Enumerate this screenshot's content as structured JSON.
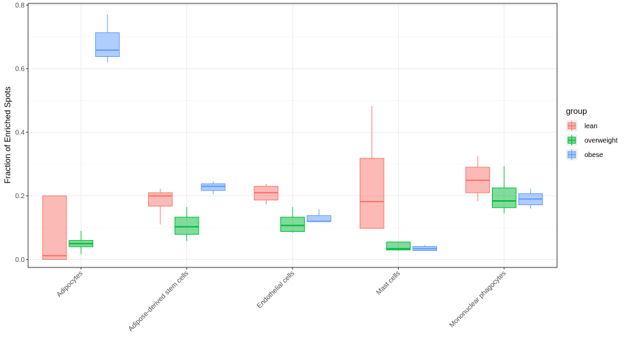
{
  "chart_data": {
    "type": "box",
    "title": "",
    "xlabel": "",
    "ylabel": "Fraction of Enriched Spots",
    "ylim": [
      -0.025,
      0.805
    ],
    "yticks": [
      "0.0",
      "0.2",
      "0.4",
      "0.6",
      "0.8"
    ],
    "ytick_values": [
      0.0,
      0.2,
      0.4,
      0.6,
      0.8
    ],
    "grid": true,
    "categories": [
      "Adipocytes",
      "Adipose-derived stem cells",
      "Endothelial cells",
      "Mast cells",
      "Mononuclear phagocytes"
    ],
    "legend": {
      "title": "group",
      "position": "right"
    },
    "series": [
      {
        "name": "lean",
        "color": "#F8766D",
        "boxes": [
          {
            "min": 0.0,
            "q1": 0.0,
            "median": 0.012,
            "q3": 0.2,
            "max": 0.2
          },
          {
            "min": 0.11,
            "q1": 0.168,
            "median": 0.2,
            "q3": 0.21,
            "max": 0.222
          },
          {
            "min": 0.173,
            "q1": 0.187,
            "median": 0.21,
            "q3": 0.23,
            "max": 0.238
          },
          {
            "min": 0.098,
            "q1": 0.098,
            "median": 0.182,
            "q3": 0.318,
            "max": 0.482
          },
          {
            "min": 0.183,
            "q1": 0.21,
            "median": 0.249,
            "q3": 0.29,
            "max": 0.325
          }
        ]
      },
      {
        "name": "overweight",
        "color": "#00BA38",
        "boxes": [
          {
            "min": 0.017,
            "q1": 0.04,
            "median": 0.05,
            "q3": 0.06,
            "max": 0.09
          },
          {
            "min": 0.058,
            "q1": 0.079,
            "median": 0.103,
            "q3": 0.133,
            "max": 0.165
          },
          {
            "min": 0.084,
            "q1": 0.088,
            "median": 0.107,
            "q3": 0.133,
            "max": 0.165
          },
          {
            "min": 0.028,
            "q1": 0.03,
            "median": 0.034,
            "q3": 0.055,
            "max": 0.055
          },
          {
            "min": 0.145,
            "q1": 0.163,
            "median": 0.184,
            "q3": 0.225,
            "max": 0.293
          }
        ]
      },
      {
        "name": "obese",
        "color": "#619CFF",
        "boxes": [
          {
            "min": 0.62,
            "q1": 0.638,
            "median": 0.658,
            "q3": 0.713,
            "max": 0.77
          },
          {
            "min": 0.205,
            "q1": 0.217,
            "median": 0.23,
            "q3": 0.238,
            "max": 0.245
          },
          {
            "min": 0.12,
            "q1": 0.12,
            "median": 0.12,
            "q3": 0.138,
            "max": 0.158
          },
          {
            "min": 0.028,
            "q1": 0.028,
            "median": 0.034,
            "q3": 0.041,
            "max": 0.045
          },
          {
            "min": 0.16,
            "q1": 0.172,
            "median": 0.19,
            "q3": 0.207,
            "max": 0.222
          }
        ]
      }
    ]
  }
}
